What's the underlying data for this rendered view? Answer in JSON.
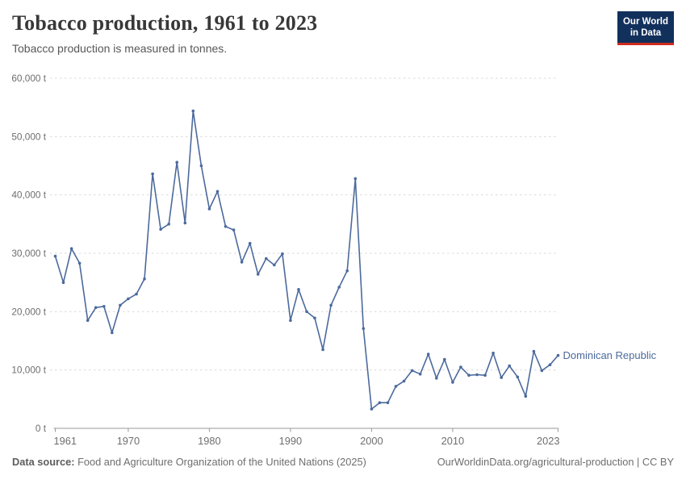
{
  "header": {
    "title": "Tobacco production, 1961 to 2023",
    "subtitle": "Tobacco production is measured in tonnes."
  },
  "logo": {
    "line1": "Our World",
    "line2": "in Data"
  },
  "colors": {
    "series": "#4c6a9c",
    "grid": "#d9d9d9",
    "axis": "#999999",
    "tick_text": "#6e6e6e",
    "logo_bg": "#12305c",
    "logo_accent": "#cf2b1f"
  },
  "chart_data": {
    "type": "line",
    "title": "Tobacco production, 1961 to 2023",
    "subtitle": "Tobacco production is measured in tonnes.",
    "xlabel": "",
    "ylabel": "tonnes",
    "xlim": [
      1961,
      2023
    ],
    "ylim": [
      0,
      60000
    ],
    "grid": "horizontal-dashed",
    "legend_position": "end-of-line-label",
    "x_ticks": [
      1961,
      1970,
      1980,
      1990,
      2000,
      2010,
      2023
    ],
    "y_ticks": [
      0,
      10000,
      20000,
      30000,
      40000,
      50000,
      60000
    ],
    "y_tick_labels": [
      "0 t",
      "10,000 t",
      "20,000 t",
      "30,000 t",
      "40,000 t",
      "50,000 t",
      "60,000 t"
    ],
    "series": [
      {
        "name": "Dominican Republic",
        "color": "#4c6a9c",
        "x": [
          1961,
          1962,
          1963,
          1964,
          1965,
          1966,
          1967,
          1968,
          1969,
          1970,
          1971,
          1972,
          1973,
          1974,
          1975,
          1976,
          1977,
          1978,
          1979,
          1980,
          1981,
          1982,
          1983,
          1984,
          1985,
          1986,
          1987,
          1988,
          1989,
          1990,
          1991,
          1992,
          1993,
          1994,
          1995,
          1996,
          1997,
          1998,
          1999,
          2000,
          2001,
          2002,
          2003,
          2004,
          2005,
          2006,
          2007,
          2008,
          2009,
          2010,
          2011,
          2012,
          2013,
          2014,
          2015,
          2016,
          2017,
          2018,
          2019,
          2020,
          2021,
          2022,
          2023
        ],
        "values": [
          29500,
          25000,
          30800,
          28300,
          18500,
          20700,
          20900,
          16400,
          21100,
          22200,
          23000,
          25600,
          43600,
          34100,
          35000,
          45600,
          35200,
          54400,
          45000,
          37600,
          40600,
          34600,
          34000,
          28500,
          31700,
          26400,
          29100,
          28000,
          29900,
          18500,
          23800,
          20000,
          18900,
          13500,
          21100,
          24200,
          27000,
          42800,
          17100,
          3300,
          4400,
          4400,
          7200,
          8100,
          9900,
          9300,
          12700,
          8600,
          11800,
          7900,
          10500,
          9100,
          9200,
          9100,
          12900,
          8700,
          10700,
          8800,
          5500,
          13200,
          9900,
          10900,
          12500
        ]
      }
    ]
  },
  "footer": {
    "source_label": "Data source:",
    "source_text": " Food and Agriculture Organization of the United Nations (2025)",
    "link_text": "OurWorldinData.org/agricultural-production | CC BY"
  }
}
